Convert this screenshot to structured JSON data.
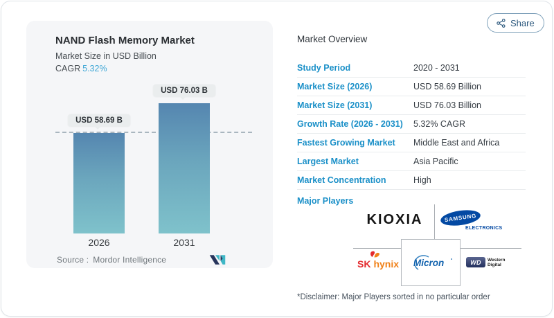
{
  "share": {
    "label": "Share"
  },
  "chart": {
    "title": "NAND Flash Memory Market",
    "subtitle": "Market Size in USD Billion",
    "cagr_label": "CAGR",
    "cagr_value": "5.32%",
    "source_label": "Source :",
    "source_value": "Mordor Intelligence"
  },
  "chart_data": {
    "type": "bar",
    "categories": [
      "2026",
      "2031"
    ],
    "values": [
      58.69,
      76.03
    ],
    "value_labels": [
      "USD 58.69 B",
      "USD 76.03 B"
    ],
    "title": "NAND Flash Memory Market",
    "subtitle": "Market Size in USD Billion",
    "cagr": "5.32%",
    "ylabel": "Market Size in USD Billion",
    "ylim": [
      0,
      80
    ],
    "grid": "off",
    "legend": "none",
    "annotations": [
      "horizontal dashed reference line at 2026 bar top (58.69)"
    ],
    "bar_gradient": [
      "#5586b0",
      "#7fc2cb"
    ],
    "source": "Mordor Intelligence"
  },
  "overview": {
    "heading": "Market Overview",
    "rows": [
      {
        "label": "Study Period",
        "value": "2020 - 2031"
      },
      {
        "label": "Market Size (2026)",
        "value": "USD 58.69 Billion"
      },
      {
        "label": "Market Size (2031)",
        "value": "USD 76.03 Billion"
      },
      {
        "label": "Growth Rate (2026 - 2031)",
        "value": "5.32% CAGR"
      },
      {
        "label": "Fastest Growing Market",
        "value": "Middle East and Africa"
      },
      {
        "label": "Largest Market",
        "value": "Asia Pacific"
      },
      {
        "label": "Market Concentration",
        "value": "High"
      }
    ],
    "major_players_label": "Major Players",
    "players": {
      "kioxia": "KIOXIA",
      "samsung_top": "SAMSUNG",
      "samsung_bottom": "ELECTRONICS",
      "sk": "SK",
      "hynix": "hynix",
      "micron": "Micron",
      "wd_badge": "WD",
      "wd_line1": "Western",
      "wd_line2": "Digital"
    },
    "disclaimer": "*Disclaimer: Major Players sorted in no particular order"
  },
  "colors": {
    "accent_blue": "#1b90c8",
    "cagr_blue": "#41a8d6",
    "bar_top": "#5586b0",
    "bar_bottom": "#7fc2cb",
    "samsung_blue": "#0349a3",
    "micron_blue": "#1263ae",
    "sk_red": "#e32a2e",
    "sk_orange": "#f08119",
    "card_bg": "#f5f6f8"
  }
}
